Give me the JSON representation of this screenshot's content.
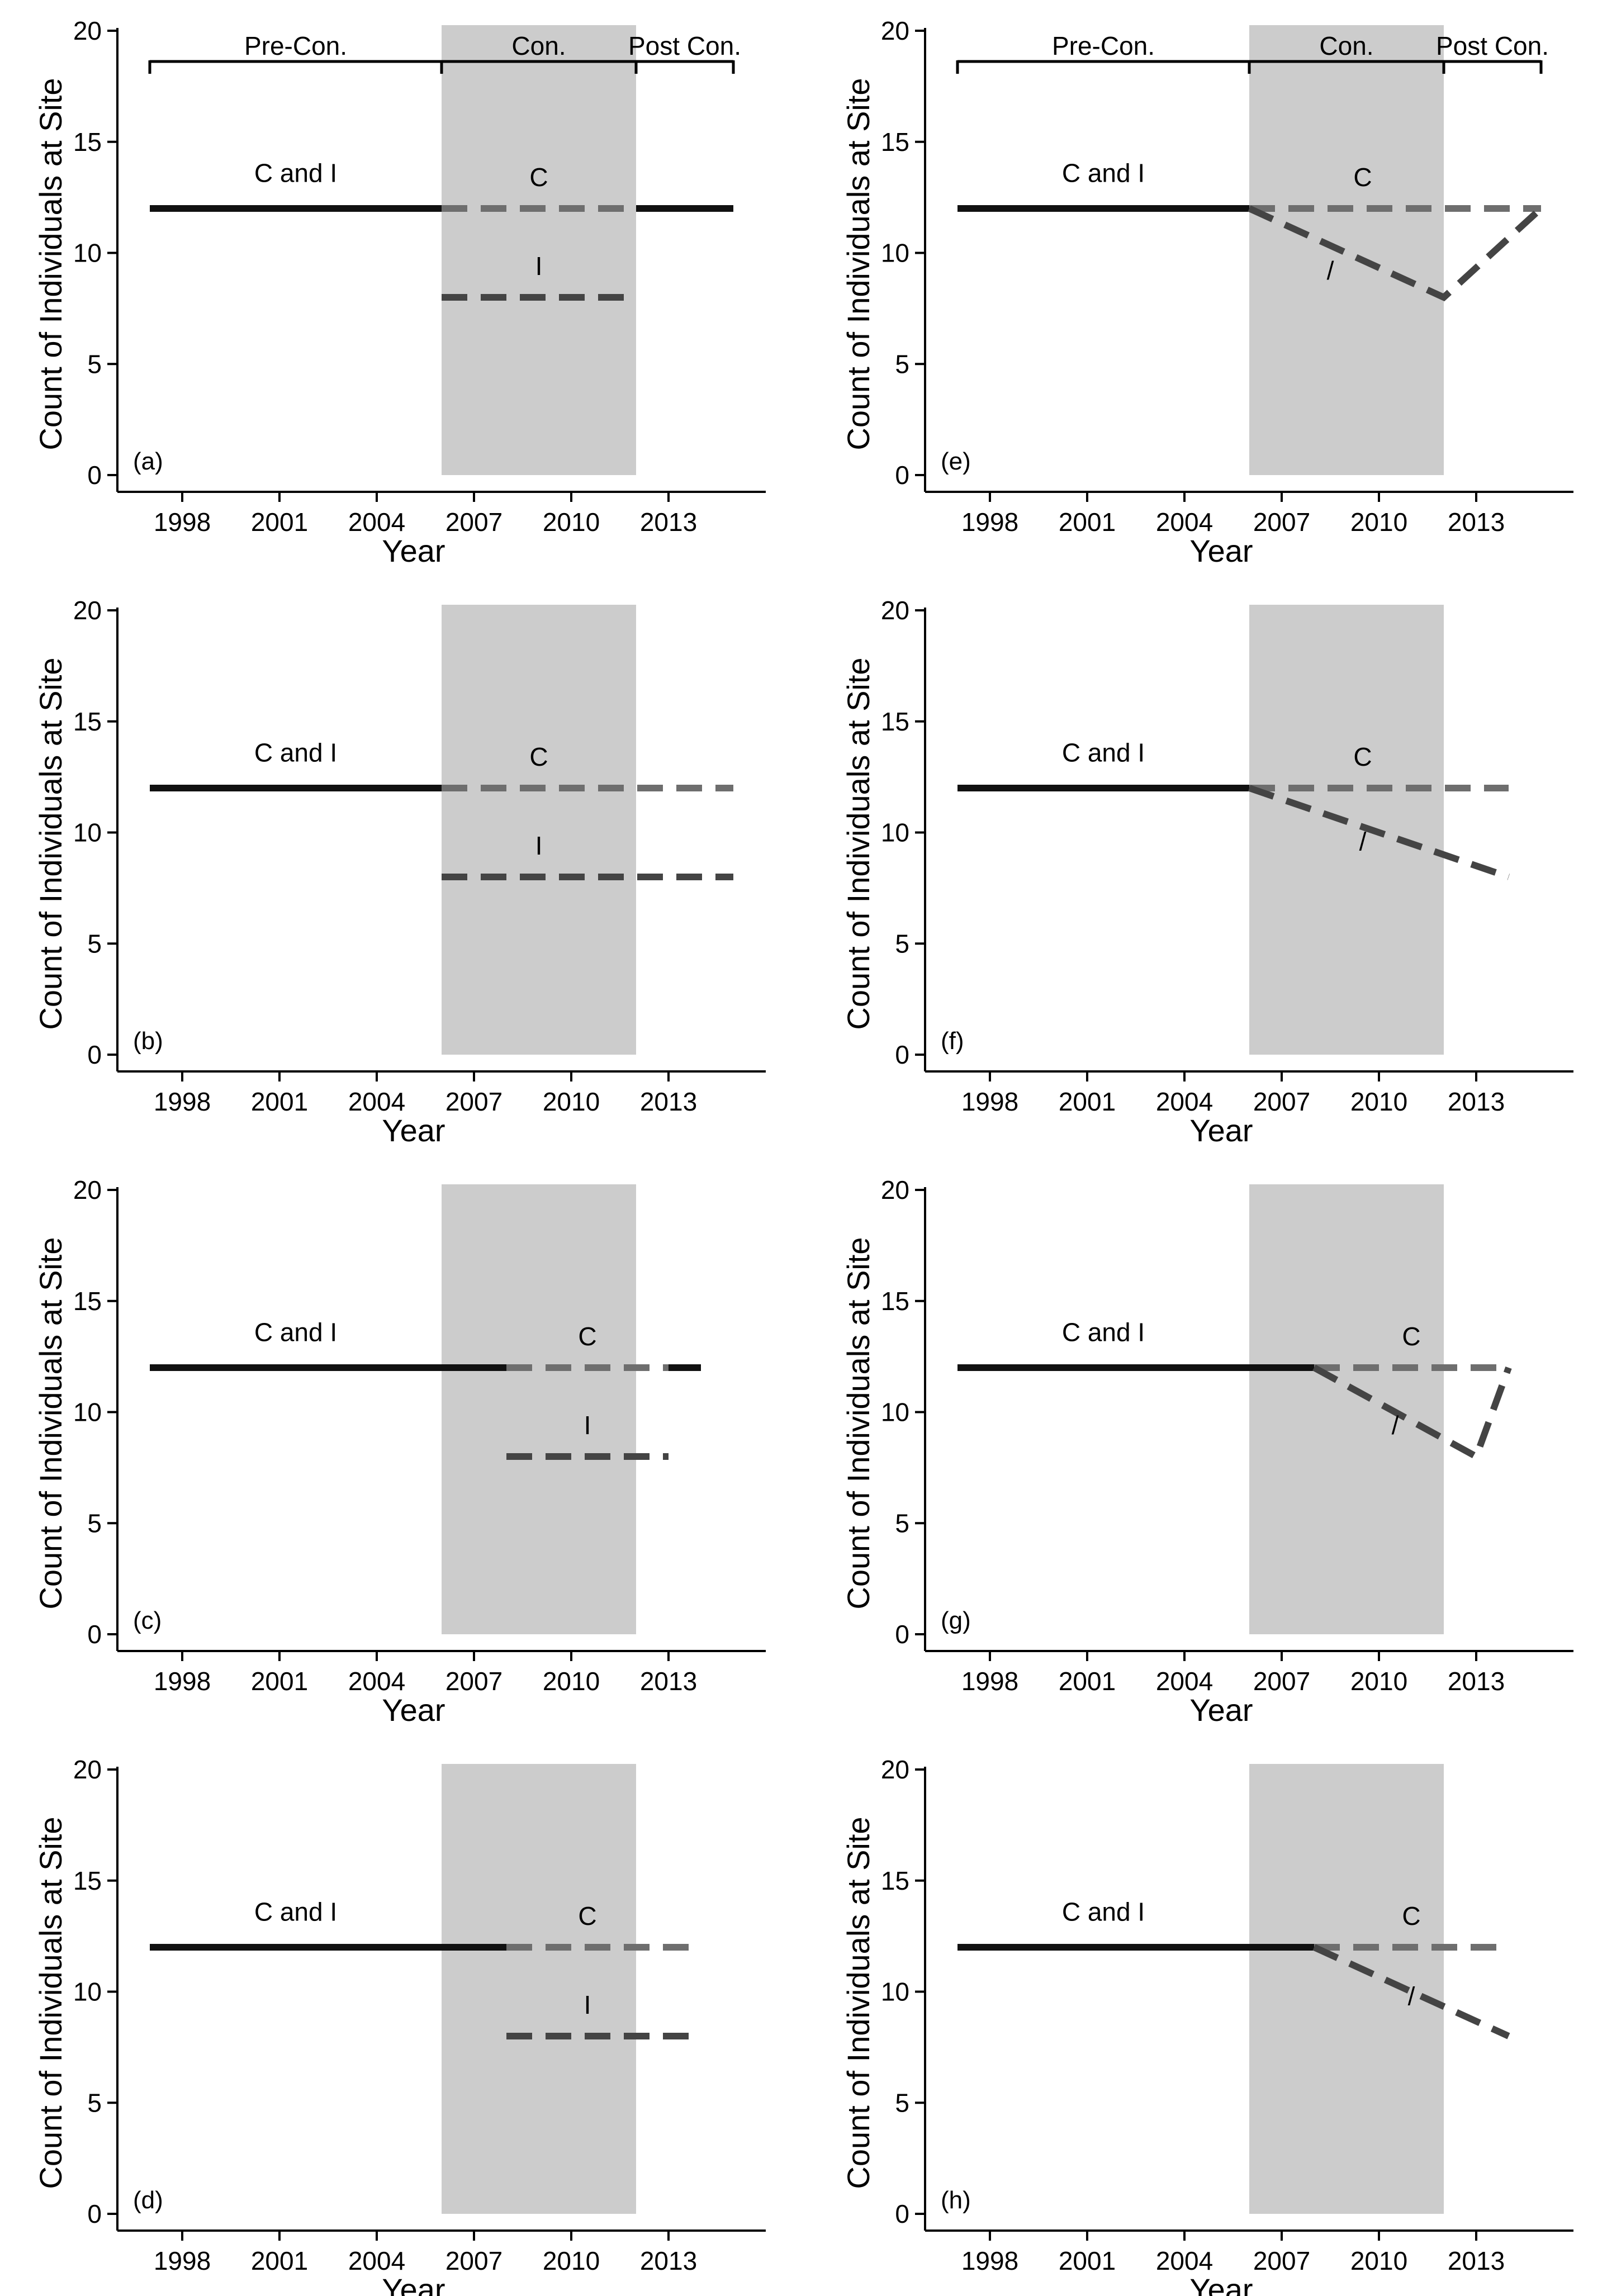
{
  "figure": {
    "description_labels": {
      "period_labels": [
        "Pre-Con.",
        "Con.",
        "Post Con."
      ]
    }
  },
  "chart_data": [
    {
      "type": "line",
      "panel": "(a)",
      "xlabel": "Year",
      "ylabel": "Count of Individuals at Site",
      "xticks": [
        1998,
        2001,
        2004,
        2007,
        2010,
        2013
      ],
      "yticks": [
        0,
        5,
        10,
        15,
        20
      ],
      "xlim": [
        1996,
        2016
      ],
      "ylim": [
        0,
        20
      ],
      "shaded_period": [
        2006,
        2012
      ],
      "show_period_bracket": true,
      "period_labels": [
        "Pre-Con.",
        "Con.",
        "Post Con."
      ],
      "series": [
        {
          "name": "C and I",
          "style": "solid",
          "color": "#111111",
          "x": [
            1997,
            2006
          ],
          "y": [
            12,
            12
          ]
        },
        {
          "name": "C",
          "style": "dashed",
          "color": "#6e6e6e",
          "x": [
            2006,
            2012
          ],
          "y": [
            12,
            12
          ]
        },
        {
          "name": "I",
          "style": "dashed",
          "color": "#444444",
          "x": [
            2006,
            2012
          ],
          "y": [
            8,
            8
          ]
        },
        {
          "name": "Post",
          "style": "solid",
          "color": "#111111",
          "x": [
            2012,
            2015
          ],
          "y": [
            12,
            12
          ]
        }
      ],
      "labels": [
        {
          "text": "C and I",
          "x": 2001.5,
          "y": 13
        },
        {
          "text": "C",
          "x": 2009,
          "y": 12.8
        },
        {
          "text": "I",
          "x": 2009,
          "y": 8.8
        }
      ]
    },
    {
      "type": "line",
      "panel": "(b)",
      "xlabel": "Year",
      "ylabel": "Count of Individuals at Site",
      "xticks": [
        1998,
        2001,
        2004,
        2007,
        2010,
        2013
      ],
      "yticks": [
        0,
        5,
        10,
        15,
        20
      ],
      "xlim": [
        1996,
        2016
      ],
      "ylim": [
        0,
        20
      ],
      "shaded_period": [
        2006,
        2012
      ],
      "show_period_bracket": false,
      "series": [
        {
          "name": "C and I",
          "style": "solid",
          "color": "#111111",
          "x": [
            1997,
            2006
          ],
          "y": [
            12,
            12
          ]
        },
        {
          "name": "C",
          "style": "dashed",
          "color": "#6e6e6e",
          "x": [
            2006,
            2015
          ],
          "y": [
            12,
            12
          ]
        },
        {
          "name": "I",
          "style": "dashed",
          "color": "#444444",
          "x": [
            2006,
            2015
          ],
          "y": [
            8,
            8
          ]
        }
      ],
      "labels": [
        {
          "text": "C and I",
          "x": 2001.5,
          "y": 13
        },
        {
          "text": "C",
          "x": 2009,
          "y": 12.8
        },
        {
          "text": "I",
          "x": 2009,
          "y": 8.8
        }
      ]
    },
    {
      "type": "line",
      "panel": "(c)",
      "xlabel": "Year",
      "ylabel": "Count of Individuals at Site",
      "xticks": [
        1998,
        2001,
        2004,
        2007,
        2010,
        2013
      ],
      "yticks": [
        0,
        5,
        10,
        15,
        20
      ],
      "xlim": [
        1996,
        2016
      ],
      "ylim": [
        0,
        20
      ],
      "shaded_period": [
        2006,
        2012
      ],
      "show_period_bracket": false,
      "series": [
        {
          "name": "C and I",
          "style": "solid",
          "color": "#111111",
          "x": [
            1997,
            2008
          ],
          "y": [
            12,
            12
          ]
        },
        {
          "name": "C",
          "style": "dashed",
          "color": "#6e6e6e",
          "x": [
            2008,
            2013
          ],
          "y": [
            12,
            12
          ]
        },
        {
          "name": "I",
          "style": "dashed",
          "color": "#444444",
          "x": [
            2008,
            2013
          ],
          "y": [
            8,
            8
          ]
        },
        {
          "name": "Post",
          "style": "solid",
          "color": "#111111",
          "x": [
            2013,
            2014
          ],
          "y": [
            12,
            12
          ]
        }
      ],
      "labels": [
        {
          "text": "C and I",
          "x": 2001.5,
          "y": 13
        },
        {
          "text": "C",
          "x": 2010.5,
          "y": 12.8
        },
        {
          "text": "I",
          "x": 2010.5,
          "y": 8.8
        }
      ]
    },
    {
      "type": "line",
      "panel": "(d)",
      "xlabel": "Year",
      "ylabel": "Count of Individuals at Site",
      "xticks": [
        1998,
        2001,
        2004,
        2007,
        2010,
        2013
      ],
      "yticks": [
        0,
        5,
        10,
        15,
        20
      ],
      "xlim": [
        1996,
        2016
      ],
      "ylim": [
        0,
        20
      ],
      "shaded_period": [
        2006,
        2012
      ],
      "show_period_bracket": false,
      "series": [
        {
          "name": "C and I",
          "style": "solid",
          "color": "#111111",
          "x": [
            1997,
            2008
          ],
          "y": [
            12,
            12
          ]
        },
        {
          "name": "C",
          "style": "dashed",
          "color": "#6e6e6e",
          "x": [
            2008,
            2014
          ],
          "y": [
            12,
            12
          ]
        },
        {
          "name": "I",
          "style": "dashed",
          "color": "#444444",
          "x": [
            2008,
            2014
          ],
          "y": [
            8,
            8
          ]
        }
      ],
      "labels": [
        {
          "text": "C and I",
          "x": 2001.5,
          "y": 13
        },
        {
          "text": "C",
          "x": 2010.5,
          "y": 12.8
        },
        {
          "text": "I",
          "x": 2010.5,
          "y": 8.8
        }
      ]
    },
    {
      "type": "line",
      "panel": "(e)",
      "xlabel": "Year",
      "ylabel": "Count of Individuals at Site",
      "xticks": [
        1998,
        2001,
        2004,
        2007,
        2010,
        2013
      ],
      "yticks": [
        0,
        5,
        10,
        15,
        20
      ],
      "xlim": [
        1996,
        2016
      ],
      "ylim": [
        0,
        20
      ],
      "shaded_period": [
        2006,
        2012
      ],
      "show_period_bracket": true,
      "period_labels": [
        "Pre-Con.",
        "Con.",
        "Post Con."
      ],
      "series": [
        {
          "name": "C and I",
          "style": "solid",
          "color": "#111111",
          "x": [
            1997,
            2006
          ],
          "y": [
            12,
            12
          ]
        },
        {
          "name": "C",
          "style": "dashed",
          "color": "#6e6e6e",
          "x": [
            2006,
            2015
          ],
          "y": [
            12,
            12
          ]
        },
        {
          "name": "I",
          "style": "dashed",
          "color": "#444444",
          "x": [
            2006,
            2012,
            2015
          ],
          "y": [
            12,
            8,
            12
          ]
        }
      ],
      "labels": [
        {
          "text": "C and I",
          "x": 2001.5,
          "y": 13
        },
        {
          "text": "C",
          "x": 2009.5,
          "y": 12.8
        },
        {
          "text": "/",
          "x": 2008.5,
          "y": 8.6
        }
      ]
    },
    {
      "type": "line",
      "panel": "(f)",
      "xlabel": "Year",
      "ylabel": "Count of Individuals at Site",
      "xticks": [
        1998,
        2001,
        2004,
        2007,
        2010,
        2013
      ],
      "yticks": [
        0,
        5,
        10,
        15,
        20
      ],
      "xlim": [
        1996,
        2016
      ],
      "ylim": [
        0,
        20
      ],
      "shaded_period": [
        2006,
        2012
      ],
      "show_period_bracket": false,
      "series": [
        {
          "name": "C and I",
          "style": "solid",
          "color": "#111111",
          "x": [
            1997,
            2006
          ],
          "y": [
            12,
            12
          ]
        },
        {
          "name": "C",
          "style": "dashed",
          "color": "#6e6e6e",
          "x": [
            2006,
            2014
          ],
          "y": [
            12,
            12
          ]
        },
        {
          "name": "I",
          "style": "dashed",
          "color": "#444444",
          "x": [
            2006,
            2014
          ],
          "y": [
            12,
            8
          ]
        }
      ],
      "labels": [
        {
          "text": "C and I",
          "x": 2001.5,
          "y": 13
        },
        {
          "text": "C",
          "x": 2009.5,
          "y": 12.8
        },
        {
          "text": "/",
          "x": 2009.5,
          "y": 9
        }
      ]
    },
    {
      "type": "line",
      "panel": "(g)",
      "xlabel": "Year",
      "ylabel": "Count of Individuals at Site",
      "xticks": [
        1998,
        2001,
        2004,
        2007,
        2010,
        2013
      ],
      "yticks": [
        0,
        5,
        10,
        15,
        20
      ],
      "xlim": [
        1996,
        2016
      ],
      "ylim": [
        0,
        20
      ],
      "shaded_period": [
        2006,
        2012
      ],
      "show_period_bracket": false,
      "series": [
        {
          "name": "C and I",
          "style": "solid",
          "color": "#111111",
          "x": [
            1997,
            2008
          ],
          "y": [
            12,
            12
          ]
        },
        {
          "name": "C",
          "style": "dashed",
          "color": "#6e6e6e",
          "x": [
            2008,
            2014
          ],
          "y": [
            12,
            12
          ]
        },
        {
          "name": "I",
          "style": "dashed",
          "color": "#444444",
          "x": [
            2008,
            2013,
            2014
          ],
          "y": [
            12,
            8,
            12
          ]
        }
      ],
      "labels": [
        {
          "text": "C and I",
          "x": 2001.5,
          "y": 13
        },
        {
          "text": "C",
          "x": 2011,
          "y": 12.8
        },
        {
          "text": "/",
          "x": 2010.5,
          "y": 8.8
        }
      ]
    },
    {
      "type": "line",
      "panel": "(h)",
      "xlabel": "Year",
      "ylabel": "Count of Individuals at Site",
      "xticks": [
        1998,
        2001,
        2004,
        2007,
        2010,
        2013
      ],
      "yticks": [
        0,
        5,
        10,
        15,
        20
      ],
      "xlim": [
        1996,
        2016
      ],
      "ylim": [
        0,
        20
      ],
      "shaded_period": [
        2006,
        2012
      ],
      "show_period_bracket": false,
      "series": [
        {
          "name": "C and I",
          "style": "solid",
          "color": "#111111",
          "x": [
            1997,
            2008
          ],
          "y": [
            12,
            12
          ]
        },
        {
          "name": "C",
          "style": "dashed",
          "color": "#6e6e6e",
          "x": [
            2008,
            2014
          ],
          "y": [
            12,
            12
          ]
        },
        {
          "name": "I",
          "style": "dashed",
          "color": "#444444",
          "x": [
            2008,
            2014
          ],
          "y": [
            12,
            8
          ]
        }
      ],
      "labels": [
        {
          "text": "C and I",
          "x": 2001.5,
          "y": 13
        },
        {
          "text": "C",
          "x": 2011,
          "y": 12.8
        },
        {
          "text": "/",
          "x": 2011,
          "y": 9.2
        }
      ]
    }
  ],
  "colors": {
    "shade": "#cccccc",
    "axis": "#000000"
  }
}
